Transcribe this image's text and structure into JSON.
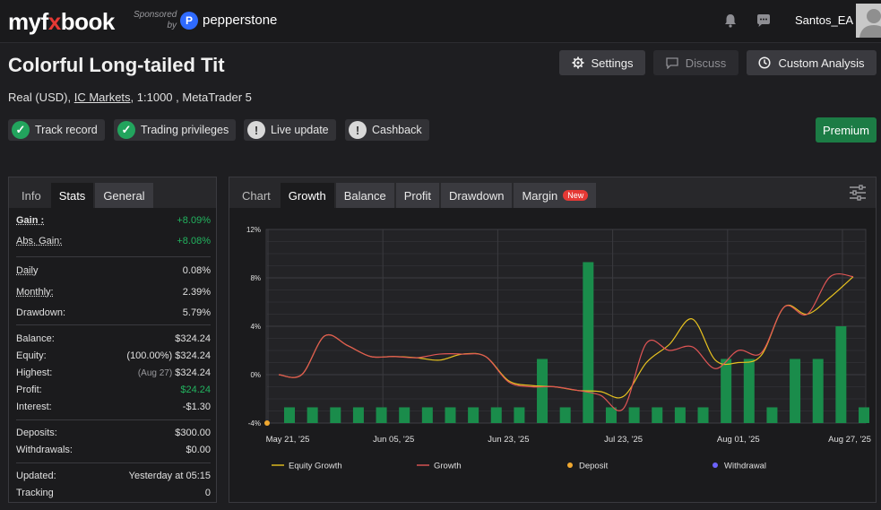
{
  "topbar": {
    "logo_prefix": "my",
    "logo_f": "f",
    "logo_x": "x",
    "logo_suffix": "book",
    "sponsor_line1": "Sponsored",
    "sponsor_line2": "by",
    "sponsor_logo_letter": "P",
    "sponsor_name": "pepperstone",
    "username": "Santos_EA"
  },
  "header": {
    "title": "Colorful Long-tailed Tit",
    "account_type": "Real (USD),",
    "broker": "IC Markets",
    "details": ", 1:1000 , MetaTrader 5",
    "settings_label": "Settings",
    "discuss_label": "Discuss",
    "custom_analysis_label": "Custom Analysis",
    "premium_label": "Premium"
  },
  "badges": [
    {
      "label": "Track record",
      "status": "verified"
    },
    {
      "label": "Trading privileges",
      "status": "verified"
    },
    {
      "label": "Live update",
      "status": "warning"
    },
    {
      "label": "Cashback",
      "status": "warning"
    }
  ],
  "stats_tabs": [
    "Info",
    "Stats",
    "General"
  ],
  "stats": {
    "gain_label": "Gain :",
    "gain_value": "+8.09%",
    "abs_gain_label": "Abs. Gain:",
    "abs_gain_value": "+8.08%",
    "daily_label": "Daily",
    "daily_value": "0.08%",
    "monthly_label": "Monthly:",
    "monthly_value": "2.39%",
    "drawdown_label": "Drawdown:",
    "drawdown_value": "5.79%",
    "balance_label": "Balance:",
    "balance_value": "$324.24",
    "equity_label": "Equity:",
    "equity_note": "(100.00%)",
    "equity_value": "$324.24",
    "highest_label": "Highest:",
    "highest_note": "(Aug 27)",
    "highest_value": "$324.24",
    "profit_label": "Profit:",
    "profit_value": "$24.24",
    "interest_label": "Interest:",
    "interest_value": "-$1.30",
    "deposits_label": "Deposits:",
    "deposits_value": "$300.00",
    "withdrawals_label": "Withdrawals:",
    "withdrawals_value": "$0.00",
    "updated_label": "Updated:",
    "updated_value": "Yesterday at 05:15",
    "tracking_label": "Tracking",
    "tracking_value": "0"
  },
  "chart_tabs": [
    "Chart",
    "Growth",
    "Balance",
    "Profit",
    "Drawdown",
    "Margin"
  ],
  "chart_new_badge": "New",
  "colors": {
    "equity_line": "#e8c21f",
    "growth_line": "#e05555",
    "bars": "#1a8c4b",
    "deposit": "#f0a830",
    "withdrawal": "#6c63ff",
    "accent_green": "#22b35f"
  },
  "chart_data": {
    "type": "line",
    "ylim": [
      -4,
      12
    ],
    "y_ticks": [
      "12%",
      "8%",
      "4%",
      "0%",
      "-4%"
    ],
    "x_tick_labels": [
      "May 21, '25",
      "Jun 05, '25",
      "Jun 23, '25",
      "Jul 23, '25",
      "Aug 01, '25",
      "Aug 27, '25"
    ],
    "legend": [
      "Equity Growth",
      "Growth",
      "Deposit",
      "Withdrawal"
    ],
    "series": [
      {
        "name": "Equity Growth",
        "points": [
          [
            0,
            0
          ],
          [
            1,
            0
          ],
          [
            2,
            3.2
          ],
          [
            3,
            2.4
          ],
          [
            4,
            1.5
          ],
          [
            5,
            1.5
          ],
          [
            6,
            1.4
          ],
          [
            7,
            1.2
          ],
          [
            8,
            1.7
          ],
          [
            9,
            1.5
          ],
          [
            10,
            -0.5
          ],
          [
            11,
            -0.9
          ],
          [
            12,
            -1.0
          ],
          [
            13,
            -1.3
          ],
          [
            14,
            -1.4
          ],
          [
            15,
            -1.8
          ],
          [
            16,
            1.0
          ],
          [
            17,
            2.5
          ],
          [
            18,
            4.6
          ],
          [
            19,
            1.2
          ],
          [
            20,
            1.0
          ],
          [
            21,
            1.6
          ],
          [
            22,
            5.6
          ],
          [
            23,
            5.0
          ],
          [
            24,
            6.4
          ],
          [
            25,
            8.1
          ]
        ]
      },
      {
        "name": "Growth",
        "points": [
          [
            0,
            0
          ],
          [
            1,
            0
          ],
          [
            2,
            3.2
          ],
          [
            3,
            2.4
          ],
          [
            4,
            1.5
          ],
          [
            5,
            1.5
          ],
          [
            6,
            1.4
          ],
          [
            7,
            1.7
          ],
          [
            8,
            1.7
          ],
          [
            9,
            1.5
          ],
          [
            10,
            -0.6
          ],
          [
            11,
            -1.0
          ],
          [
            12,
            -1.0
          ],
          [
            13,
            -1.3
          ],
          [
            14,
            -1.7
          ],
          [
            15,
            -2.8
          ],
          [
            16,
            2.6
          ],
          [
            17,
            2.0
          ],
          [
            18,
            2.3
          ],
          [
            19,
            0.5
          ],
          [
            20,
            2.0
          ],
          [
            21,
            1.8
          ],
          [
            22,
            5.6
          ],
          [
            23,
            5.0
          ],
          [
            24,
            8.1
          ],
          [
            25,
            8.1
          ]
        ]
      }
    ],
    "bars": [
      -2.7,
      -2.7,
      -2.7,
      -2.7,
      -2.7,
      -2.7,
      -2.7,
      -2.7,
      -2.7,
      -2.7,
      -2.7,
      1.3,
      -2.7,
      9.3,
      -2.7,
      -2.7,
      -2.7,
      -2.7,
      -2.7,
      1.3,
      1.3,
      -2.7,
      1.3,
      1.3,
      4.0,
      -2.7
    ],
    "deposit_points": [
      [
        0,
        -4
      ]
    ]
  }
}
